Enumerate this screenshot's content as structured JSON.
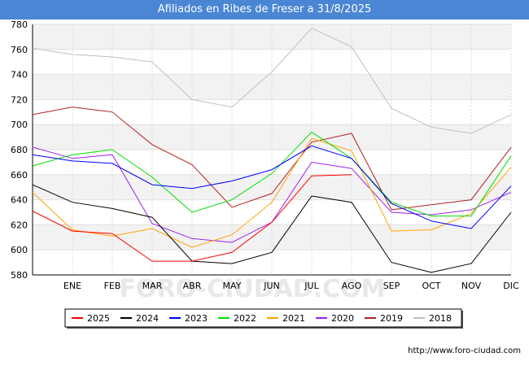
{
  "chart_data": {
    "type": "line",
    "title": "Afiliados en Ribes de Freser a 31/8/2025",
    "categories": [
      "",
      "ENE",
      "FEB",
      "MAR",
      "ABR",
      "MAY",
      "JUN",
      "JUL",
      "AGO",
      "SEP",
      "OCT",
      "NOV",
      "DIC"
    ],
    "yticks": [
      580,
      600,
      620,
      640,
      660,
      680,
      700,
      720,
      740,
      760,
      780
    ],
    "ylim": [
      580,
      780
    ],
    "xlabel": "",
    "ylabel": "",
    "grid": true,
    "legend_position": "bottom",
    "series": [
      {
        "name": "2025",
        "color": "#ff0000",
        "values": [
          631,
          615,
          613,
          591,
          591,
          598,
          622,
          659,
          660,
          null,
          null,
          null,
          null
        ]
      },
      {
        "name": "2024",
        "color": "#000000",
        "values": [
          652,
          638,
          633,
          626,
          591,
          589,
          598,
          643,
          638,
          590,
          582,
          589,
          630
        ]
      },
      {
        "name": "2023",
        "color": "#0000ff",
        "values": [
          676,
          671,
          669,
          652,
          649,
          655,
          664,
          683,
          673,
          637,
          623,
          617,
          651
        ]
      },
      {
        "name": "2022",
        "color": "#00dd00",
        "values": [
          667,
          676,
          680,
          658,
          630,
          640,
          661,
          694,
          673,
          638,
          627,
          627,
          675
        ]
      },
      {
        "name": "2021",
        "color": "#ffa500",
        "values": [
          646,
          616,
          611,
          617,
          602,
          612,
          638,
          689,
          679,
          615,
          616,
          629,
          666
        ]
      },
      {
        "name": "2020",
        "color": "#a020f0",
        "values": [
          682,
          673,
          676,
          621,
          609,
          606,
          622,
          670,
          665,
          630,
          628,
          632,
          646
        ]
      },
      {
        "name": "2019",
        "color": "#b22222",
        "values": [
          708,
          714,
          710,
          684,
          668,
          634,
          645,
          686,
          693,
          632,
          636,
          640,
          682
        ]
      },
      {
        "name": "2018",
        "color": "#c0c0c0",
        "values": [
          761,
          756,
          754,
          750,
          720,
          714,
          742,
          777,
          762,
          713,
          698,
          693,
          708
        ]
      }
    ]
  },
  "watermark": "FORO-CIUDAD.COM",
  "footer": {
    "url": "http://www.foro-ciudad.com"
  }
}
